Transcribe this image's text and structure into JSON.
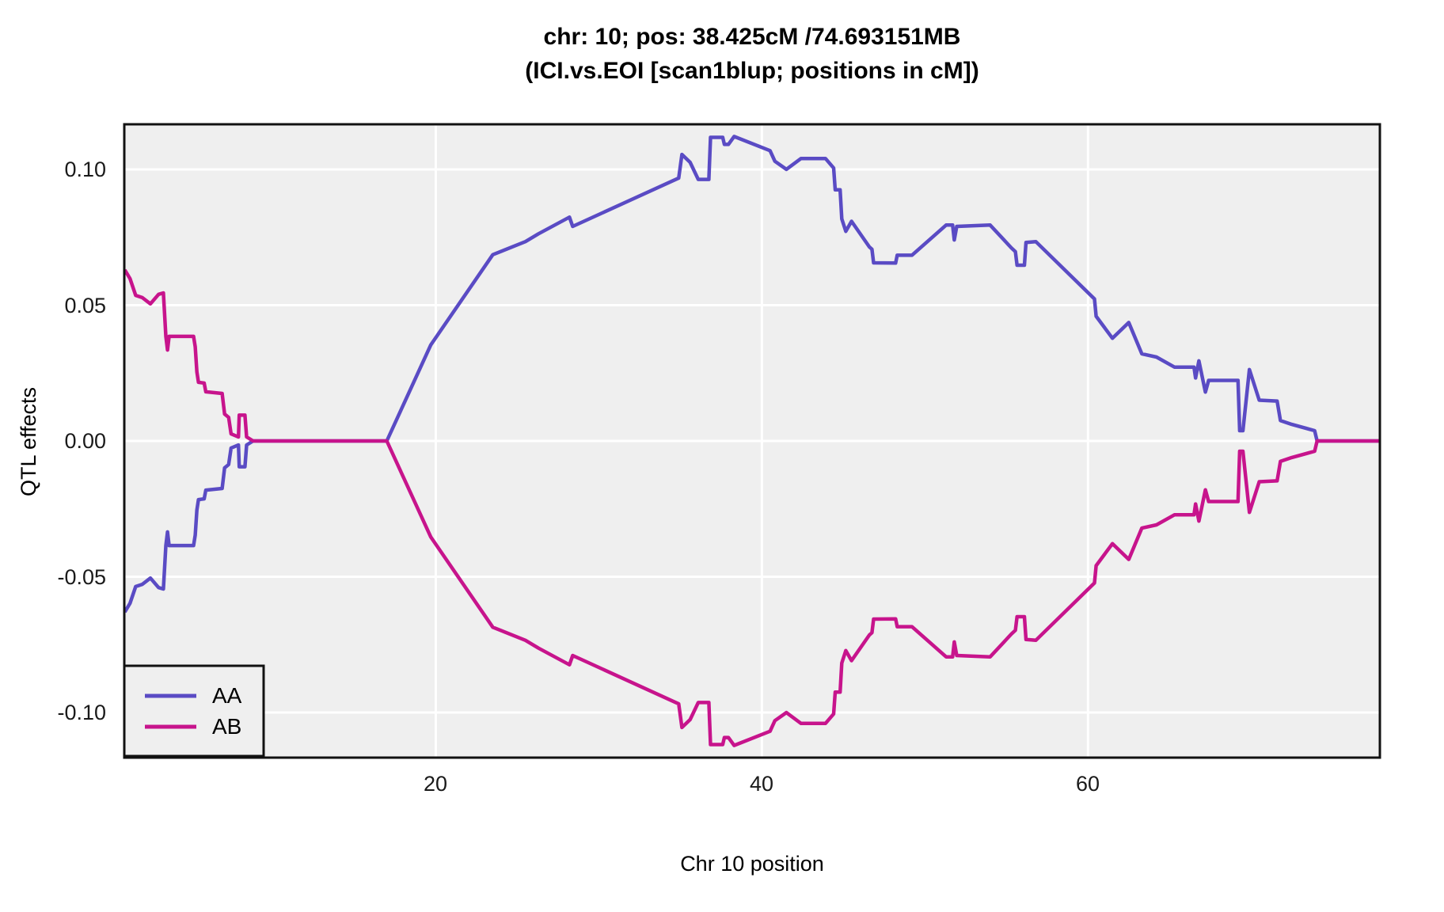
{
  "title": {
    "line1": "chr: 10; pos: 38.425cM /74.693151MB",
    "line2": "(ICI.vs.EOI [scan1blup; positions in cM])"
  },
  "axes": {
    "x": {
      "label": "Chr 10 position",
      "range": [
        0.9,
        77.9
      ],
      "ticks": [
        {
          "value": 20,
          "label": "20"
        },
        {
          "value": 40,
          "label": "40"
        },
        {
          "value": 60,
          "label": "60"
        }
      ]
    },
    "y": {
      "label": "QTL effects",
      "range": [
        -0.1166,
        0.1166
      ],
      "ticks": [
        {
          "value": 0.1,
          "label": "0.10"
        },
        {
          "value": 0.05,
          "label": "0.05"
        },
        {
          "value": 0.0,
          "label": "0.00"
        },
        {
          "value": -0.05,
          "label": "-0.05"
        },
        {
          "value": -0.1,
          "label": "-0.10"
        }
      ]
    }
  },
  "legend": {
    "items": [
      {
        "label": "AA",
        "color": "#5A4BC4"
      },
      {
        "label": "AB",
        "color": "#C7148C"
      }
    ]
  },
  "colors": {
    "panel_background": "#EFEFEF",
    "grid": "#FFFFFF",
    "border": "#111111",
    "series_AA": "#5A4BC4",
    "series_AB": "#C7148C"
  },
  "chart_data": {
    "type": "line",
    "title": "chr: 10; pos: 38.425cM /74.693151MB (ICI.vs.EOI [scan1blup; positions in cM])",
    "xlabel": "Chr 10 position",
    "ylabel": "QTL effects",
    "xlim": [
      0.9,
      77.9
    ],
    "ylim": [
      -0.1166,
      0.1166
    ],
    "grid": "major-only, white lines on gray panel",
    "legend_position": "bottom-left",
    "note": "AB series is the exact mirror (negation) of AA about y=0; both meet at y=0 for x in [8.8,17.0] and x>=74.05",
    "series": [
      {
        "name": "AA",
        "color": "#5A4BC4",
        "points": [
          [
            0.93,
            -0.063
          ],
          [
            1.25,
            -0.0598
          ],
          [
            1.6,
            -0.0536
          ],
          [
            2.0,
            -0.0528
          ],
          [
            2.5,
            -0.0505
          ],
          [
            3.0,
            -0.054
          ],
          [
            3.3,
            -0.0545
          ],
          [
            3.45,
            -0.0385
          ],
          [
            3.55,
            -0.0335
          ],
          [
            3.65,
            -0.0385
          ],
          [
            5.15,
            -0.0385
          ],
          [
            5.25,
            -0.0347
          ],
          [
            5.35,
            -0.0254
          ],
          [
            5.45,
            -0.0216
          ],
          [
            5.8,
            -0.0213
          ],
          [
            5.9,
            -0.0181
          ],
          [
            6.9,
            -0.0175
          ],
          [
            7.05,
            -0.0099
          ],
          [
            7.3,
            -0.0087
          ],
          [
            7.45,
            -0.0026
          ],
          [
            7.9,
            -0.0015
          ],
          [
            7.95,
            -0.0095
          ],
          [
            8.3,
            -0.0095
          ],
          [
            8.4,
            -0.0015
          ],
          [
            8.8,
            0.0
          ],
          [
            17.0,
            0.0
          ],
          [
            19.7,
            0.0354
          ],
          [
            23.5,
            0.0686
          ],
          [
            25.5,
            0.0734
          ],
          [
            26.3,
            0.0763
          ],
          [
            28.2,
            0.0824
          ],
          [
            28.4,
            0.079
          ],
          [
            34.9,
            0.0968
          ],
          [
            35.1,
            0.1055
          ],
          [
            35.6,
            0.1026
          ],
          [
            36.1,
            0.0963
          ],
          [
            36.75,
            0.0963
          ],
          [
            36.85,
            0.1118
          ],
          [
            37.6,
            0.1118
          ],
          [
            37.7,
            0.1092
          ],
          [
            37.95,
            0.1092
          ],
          [
            38.3,
            0.1121
          ],
          [
            40.5,
            0.1069
          ],
          [
            40.8,
            0.103
          ],
          [
            41.5,
            0.1
          ],
          [
            42.4,
            0.104
          ],
          [
            43.9,
            0.104
          ],
          [
            44.4,
            0.1005
          ],
          [
            44.5,
            0.0925
          ],
          [
            44.8,
            0.0925
          ],
          [
            44.9,
            0.0818
          ],
          [
            45.15,
            0.0772
          ],
          [
            45.5,
            0.0809
          ],
          [
            46.6,
            0.0714
          ],
          [
            46.75,
            0.0706
          ],
          [
            46.85,
            0.0656
          ],
          [
            48.2,
            0.0655
          ],
          [
            48.3,
            0.0684
          ],
          [
            49.2,
            0.0684
          ],
          [
            51.3,
            0.0795
          ],
          [
            51.7,
            0.0795
          ],
          [
            51.8,
            0.074
          ],
          [
            51.95,
            0.079
          ],
          [
            54.0,
            0.0795
          ],
          [
            55.3,
            0.0711
          ],
          [
            55.55,
            0.0697
          ],
          [
            55.65,
            0.0647
          ],
          [
            56.1,
            0.0647
          ],
          [
            56.2,
            0.0731
          ],
          [
            56.8,
            0.0734
          ],
          [
            60.4,
            0.0523
          ],
          [
            60.5,
            0.0459
          ],
          [
            61.5,
            0.0378
          ],
          [
            62.5,
            0.0436
          ],
          [
            63.3,
            0.0321
          ],
          [
            64.2,
            0.0309
          ],
          [
            65.3,
            0.0272
          ],
          [
            66.5,
            0.0272
          ],
          [
            66.6,
            0.0232
          ],
          [
            66.8,
            0.0295
          ],
          [
            67.2,
            0.018
          ],
          [
            67.4,
            0.0223
          ],
          [
            69.2,
            0.0223
          ],
          [
            69.3,
            0.0038
          ],
          [
            69.5,
            0.0038
          ],
          [
            69.9,
            0.0263
          ],
          [
            70.5,
            0.015
          ],
          [
            71.6,
            0.0147
          ],
          [
            71.8,
            0.0075
          ],
          [
            72.5,
            0.0061
          ],
          [
            73.9,
            0.0038
          ],
          [
            74.05,
            0.0
          ],
          [
            77.9,
            0.0
          ]
        ]
      },
      {
        "name": "AB",
        "color": "#C7148C",
        "points": [
          [
            0.93,
            0.063
          ],
          [
            1.25,
            0.0598
          ],
          [
            1.6,
            0.0536
          ],
          [
            2.0,
            0.0528
          ],
          [
            2.5,
            0.0505
          ],
          [
            3.0,
            0.054
          ],
          [
            3.3,
            0.0545
          ],
          [
            3.45,
            0.0385
          ],
          [
            3.55,
            0.0335
          ],
          [
            3.65,
            0.0385
          ],
          [
            5.15,
            0.0385
          ],
          [
            5.25,
            0.0347
          ],
          [
            5.35,
            0.0254
          ],
          [
            5.45,
            0.0216
          ],
          [
            5.8,
            0.0213
          ],
          [
            5.9,
            0.0181
          ],
          [
            6.9,
            0.0175
          ],
          [
            7.05,
            0.0099
          ],
          [
            7.3,
            0.0087
          ],
          [
            7.45,
            0.0026
          ],
          [
            7.9,
            0.0015
          ],
          [
            7.95,
            0.0095
          ],
          [
            8.3,
            0.0095
          ],
          [
            8.4,
            0.0015
          ],
          [
            8.8,
            0.0
          ],
          [
            17.0,
            0.0
          ],
          [
            19.7,
            -0.0354
          ],
          [
            23.5,
            -0.0686
          ],
          [
            25.5,
            -0.0734
          ],
          [
            26.3,
            -0.0763
          ],
          [
            28.2,
            -0.0824
          ],
          [
            28.4,
            -0.079
          ],
          [
            34.9,
            -0.0968
          ],
          [
            35.1,
            -0.1055
          ],
          [
            35.6,
            -0.1026
          ],
          [
            36.1,
            -0.0963
          ],
          [
            36.75,
            -0.0963
          ],
          [
            36.85,
            -0.1118
          ],
          [
            37.6,
            -0.1118
          ],
          [
            37.7,
            -0.1092
          ],
          [
            37.95,
            -0.1092
          ],
          [
            38.3,
            -0.1121
          ],
          [
            40.5,
            -0.1069
          ],
          [
            40.8,
            -0.103
          ],
          [
            41.5,
            -0.1
          ],
          [
            42.4,
            -0.104
          ],
          [
            43.9,
            -0.104
          ],
          [
            44.4,
            -0.1005
          ],
          [
            44.5,
            -0.0925
          ],
          [
            44.8,
            -0.0925
          ],
          [
            44.9,
            -0.0818
          ],
          [
            45.15,
            -0.0772
          ],
          [
            45.5,
            -0.0809
          ],
          [
            46.6,
            -0.0714
          ],
          [
            46.75,
            -0.0706
          ],
          [
            46.85,
            -0.0656
          ],
          [
            48.2,
            -0.0655
          ],
          [
            48.3,
            -0.0684
          ],
          [
            49.2,
            -0.0684
          ],
          [
            51.3,
            -0.0795
          ],
          [
            51.7,
            -0.0795
          ],
          [
            51.8,
            -0.074
          ],
          [
            51.95,
            -0.079
          ],
          [
            54.0,
            -0.0795
          ],
          [
            55.3,
            -0.0711
          ],
          [
            55.55,
            -0.0697
          ],
          [
            55.65,
            -0.0647
          ],
          [
            56.1,
            -0.0647
          ],
          [
            56.2,
            -0.0731
          ],
          [
            56.8,
            -0.0734
          ],
          [
            60.4,
            -0.0523
          ],
          [
            60.5,
            -0.0459
          ],
          [
            61.5,
            -0.0378
          ],
          [
            62.5,
            -0.0436
          ],
          [
            63.3,
            -0.0321
          ],
          [
            64.2,
            -0.0309
          ],
          [
            65.3,
            -0.0272
          ],
          [
            66.5,
            -0.0272
          ],
          [
            66.6,
            -0.0232
          ],
          [
            66.8,
            -0.0295
          ],
          [
            67.2,
            -0.018
          ],
          [
            67.4,
            -0.0223
          ],
          [
            69.2,
            -0.0223
          ],
          [
            69.3,
            -0.0038
          ],
          [
            69.5,
            -0.0038
          ],
          [
            69.9,
            -0.0263
          ],
          [
            70.5,
            -0.015
          ],
          [
            71.6,
            -0.0147
          ],
          [
            71.8,
            -0.0075
          ],
          [
            72.5,
            -0.0061
          ],
          [
            73.9,
            -0.0038
          ],
          [
            74.05,
            0.0
          ],
          [
            77.9,
            0.0
          ]
        ]
      }
    ]
  }
}
